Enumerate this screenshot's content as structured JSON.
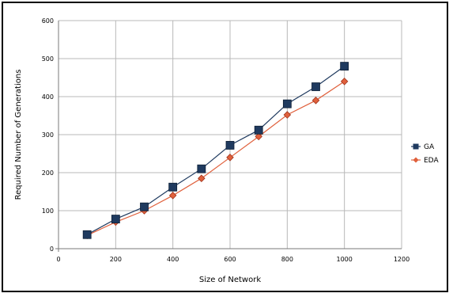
{
  "colors": {
    "ga": "#1f3a5f",
    "eda": "#e0603c",
    "grid": "#b8b8b8",
    "axis": "#7a7a7a"
  },
  "chart_data": {
    "type": "line",
    "title": "",
    "xlabel": "Size of Network",
    "ylabel": "Required Number of Generations",
    "x": [
      100,
      200,
      300,
      400,
      500,
      600,
      700,
      800,
      900,
      1000
    ],
    "xlim": [
      0,
      1200
    ],
    "ylim": [
      0,
      600
    ],
    "xticks": [
      0,
      200,
      400,
      600,
      800,
      1000,
      1200
    ],
    "yticks": [
      0,
      100,
      200,
      300,
      400,
      500,
      600
    ],
    "xtick_labels": [
      "0",
      "200",
      "400",
      "600",
      "800",
      "1000",
      "1200"
    ],
    "ytick_labels": [
      "0",
      "100",
      "200",
      "300",
      "400",
      "500",
      "600"
    ],
    "grid": true,
    "legend_position": "right",
    "series": [
      {
        "name": "GA",
        "marker": "square",
        "color_key": "ga",
        "values": [
          37,
          78,
          110,
          162,
          210,
          272,
          312,
          381,
          426,
          480
        ]
      },
      {
        "name": "EDA",
        "marker": "diamond",
        "color_key": "eda",
        "values": [
          35,
          70,
          100,
          140,
          185,
          240,
          295,
          352,
          390,
          440
        ]
      }
    ]
  }
}
